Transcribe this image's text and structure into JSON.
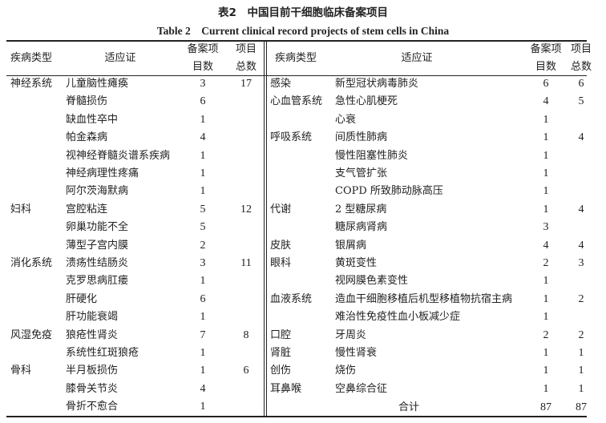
{
  "title_cn": "表2　中国目前干细胞临床备案项目",
  "title_en": "Table 2　Current clinical record projects of stem cells in China",
  "headers": {
    "category": "疾病类型",
    "indication": "适应证",
    "count_line1": "备案项",
    "count_line2": "目数",
    "total_line1": "项目",
    "total_line2": "总数"
  },
  "left_rows": [
    {
      "category": "神经系统",
      "indication": "儿童脑性瘫痪",
      "count": "3",
      "total": "17"
    },
    {
      "category": "",
      "indication": "脊髓损伤",
      "count": "6",
      "total": ""
    },
    {
      "category": "",
      "indication": "缺血性卒中",
      "count": "1",
      "total": ""
    },
    {
      "category": "",
      "indication": "帕金森病",
      "count": "4",
      "total": ""
    },
    {
      "category": "",
      "indication": "视神经脊髓炎谱系疾病",
      "count": "1",
      "total": ""
    },
    {
      "category": "",
      "indication": "神经病理性疼痛",
      "count": "1",
      "total": ""
    },
    {
      "category": "",
      "indication": "阿尔茨海默病",
      "count": "1",
      "total": ""
    },
    {
      "category": "妇科",
      "indication": "宫腔粘连",
      "count": "5",
      "total": "12"
    },
    {
      "category": "",
      "indication": "卵巢功能不全",
      "count": "5",
      "total": ""
    },
    {
      "category": "",
      "indication": "薄型子宫内膜",
      "count": "2",
      "total": ""
    },
    {
      "category": "消化系统",
      "indication": "溃疡性结肠炎",
      "count": "3",
      "total": "11"
    },
    {
      "category": "",
      "indication": "克罗思病肛瘘",
      "count": "1",
      "total": ""
    },
    {
      "category": "",
      "indication": "肝硬化",
      "count": "6",
      "total": ""
    },
    {
      "category": "",
      "indication": "肝功能衰竭",
      "count": "1",
      "total": ""
    },
    {
      "category": "风湿免疫",
      "indication": "狼疮性肾炎",
      "count": "7",
      "total": "8"
    },
    {
      "category": "",
      "indication": "系统性红斑狼疮",
      "count": "1",
      "total": ""
    },
    {
      "category": "骨科",
      "indication": "半月板损伤",
      "count": "1",
      "total": "6"
    },
    {
      "category": "",
      "indication": "膝骨关节炎",
      "count": "4",
      "total": ""
    },
    {
      "category": "",
      "indication": "骨折不愈合",
      "count": "1",
      "total": ""
    }
  ],
  "right_rows": [
    {
      "category": "感染",
      "indication": "新型冠状病毒肺炎",
      "count": "6",
      "total": "6"
    },
    {
      "category": "心血管系统",
      "indication": "急性心肌梗死",
      "count": "4",
      "total": "5"
    },
    {
      "category": "",
      "indication": "心衰",
      "count": "1",
      "total": ""
    },
    {
      "category": "呼吸系统",
      "indication": "间质性肺病",
      "count": "1",
      "total": "4"
    },
    {
      "category": "",
      "indication": "慢性阻塞性肺炎",
      "count": "1",
      "total": ""
    },
    {
      "category": "",
      "indication": "支气管扩张",
      "count": "1",
      "total": ""
    },
    {
      "category": "",
      "indication": "COPD 所致肺动脉高压",
      "count": "1",
      "total": ""
    },
    {
      "category": "代谢",
      "indication": "2 型糖尿病",
      "count": "1",
      "total": "4"
    },
    {
      "category": "",
      "indication": "糖尿病肾病",
      "count": "3",
      "total": ""
    },
    {
      "category": "皮肤",
      "indication": "银屑病",
      "count": "4",
      "total": "4"
    },
    {
      "category": "眼科",
      "indication": "黄斑变性",
      "count": "2",
      "total": "3"
    },
    {
      "category": "",
      "indication": "视网膜色素变性",
      "count": "1",
      "total": ""
    },
    {
      "category": "血液系统",
      "indication": "造血干细胞移植后机型移植物抗宿主病",
      "count": "1",
      "total": "2"
    },
    {
      "category": "",
      "indication": "难治性免疫性血小板减少症",
      "count": "1",
      "total": ""
    },
    {
      "category": "口腔",
      "indication": "牙周炎",
      "count": "2",
      "total": "2"
    },
    {
      "category": "肾脏",
      "indication": "慢性肾衰",
      "count": "1",
      "total": "1"
    },
    {
      "category": "创伤",
      "indication": "烧伤",
      "count": "1",
      "total": "1"
    },
    {
      "category": "耳鼻喉",
      "indication": "空鼻综合征",
      "count": "1",
      "total": "1"
    }
  ],
  "summary": {
    "label": "合计",
    "count": "87",
    "total": "87"
  }
}
